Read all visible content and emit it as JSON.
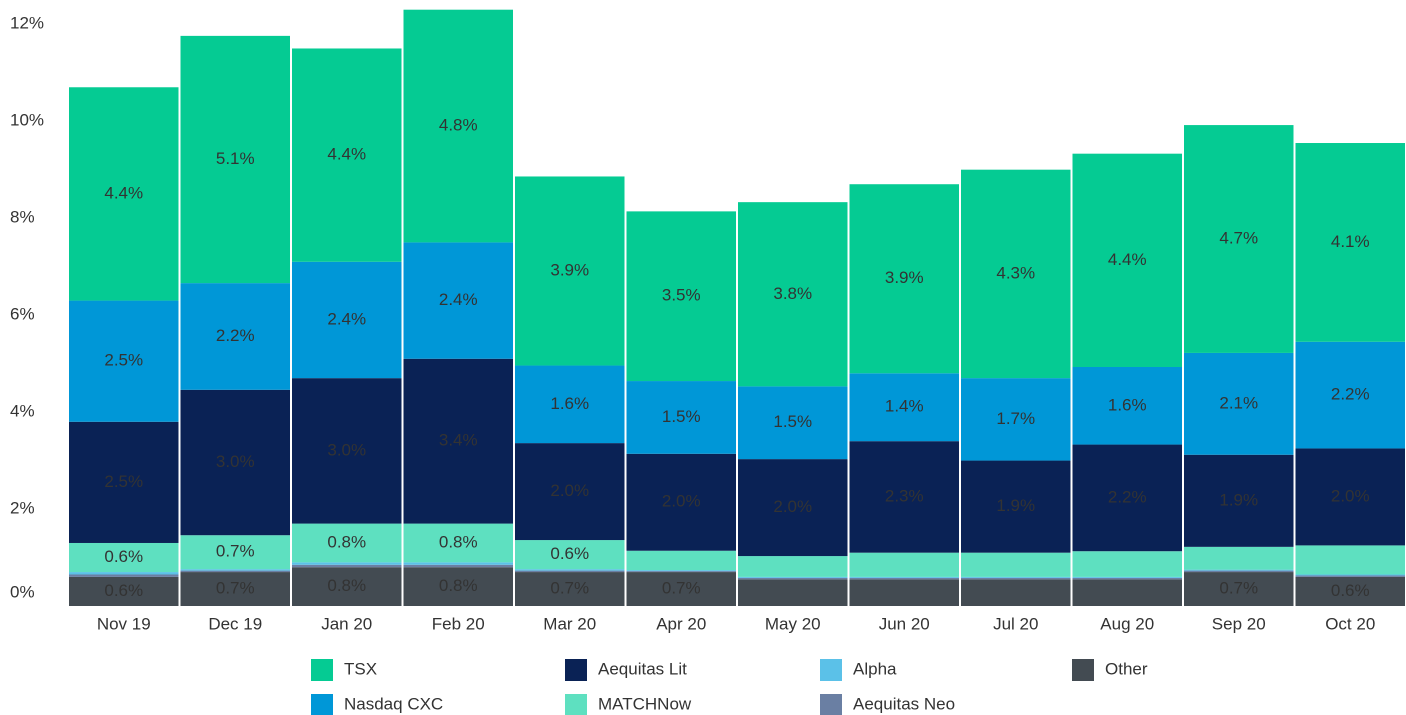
{
  "chart_data": {
    "type": "stacked_bar",
    "categories": [
      "Nov 19",
      "Dec 19",
      "Jan 20",
      "Feb 20",
      "Mar 20",
      "Apr 20",
      "May 20",
      "Jun 20",
      "Jul 20",
      "Aug 20",
      "Sep 20",
      "Oct 20"
    ],
    "ylim": [
      0,
      12.5
    ],
    "yticks": [
      {
        "value": 0,
        "label": "0%"
      },
      {
        "value": 2,
        "label": "2%"
      },
      {
        "value": 4,
        "label": "4%"
      },
      {
        "value": 6,
        "label": "6%"
      },
      {
        "value": 8,
        "label": "8%"
      },
      {
        "value": 10,
        "label": "10%"
      },
      {
        "value": 12,
        "label": "12%"
      }
    ],
    "grid": false,
    "series": [
      {
        "name": "TSX",
        "color": "#05cb93",
        "values": [
          4.4,
          5.1,
          4.4,
          4.8,
          3.9,
          3.5,
          3.8,
          3.9,
          4.3,
          4.4,
          4.7,
          4.1
        ],
        "value_labels": [
          "4.4%",
          "5.1%",
          "4.4%",
          "4.8%",
          "3.9%",
          "3.5%",
          "3.8%",
          "3.9%",
          "4.3%",
          "4.4%",
          "4.7%",
          "4.1%"
        ]
      },
      {
        "name": "Nasdaq CXC",
        "color": "#0097d7",
        "values": [
          2.5,
          2.2,
          2.4,
          2.4,
          1.6,
          1.5,
          1.5,
          1.4,
          1.7,
          1.6,
          2.1,
          2.2
        ],
        "value_labels": [
          "2.5%",
          "2.2%",
          "2.4%",
          "2.4%",
          "1.6%",
          "1.5%",
          "1.5%",
          "1.4%",
          "1.7%",
          "1.6%",
          "2.1%",
          "2.2%"
        ]
      },
      {
        "name": "Aequitas Lit",
        "color": "#0a2255",
        "values": [
          2.5,
          3.0,
          3.0,
          3.4,
          2.0,
          2.0,
          2.0,
          2.3,
          1.9,
          2.2,
          1.9,
          2.0
        ],
        "value_labels": [
          "2.5%",
          "3.0%",
          "3.0%",
          "3.4%",
          "2.0%",
          "2.0%",
          "2.0%",
          "2.3%",
          "1.9%",
          "2.2%",
          "1.9%",
          "2.0%"
        ]
      },
      {
        "name": "MATCHNow",
        "color": "#5ee0c0",
        "values": [
          0.6,
          0.7,
          0.8,
          0.8,
          0.6,
          0.4,
          0.43,
          0.5,
          0.5,
          0.53,
          0.47,
          0.6
        ],
        "value_labels": [
          "0.6%",
          "0.7%",
          "0.8%",
          "0.8%",
          "0.6%",
          null,
          null,
          null,
          null,
          null,
          null,
          null
        ]
      },
      {
        "name": "Alpha",
        "color": "#5bc1e8",
        "values": [
          0.05,
          0.03,
          0.05,
          0.05,
          0.03,
          0.02,
          0.02,
          0.02,
          0.02,
          0.02,
          0.02,
          0.02
        ]
      },
      {
        "name": "Aequitas Neo",
        "color": "#6a7fa3",
        "values": [
          0.05,
          0.03,
          0.05,
          0.05,
          0.03,
          0.02,
          0.03,
          0.03,
          0.03,
          0.03,
          0.03,
          0.03
        ]
      },
      {
        "name": "Other",
        "color": "#434b52",
        "values": [
          0.6,
          0.7,
          0.8,
          0.8,
          0.7,
          0.7,
          0.55,
          0.55,
          0.55,
          0.55,
          0.7,
          0.6
        ],
        "value_labels": [
          "0.6%",
          "0.7%",
          "0.8%",
          "0.8%",
          "0.7%",
          "0.7%",
          null,
          null,
          null,
          null,
          "0.7%",
          "0.6%"
        ]
      }
    ]
  }
}
